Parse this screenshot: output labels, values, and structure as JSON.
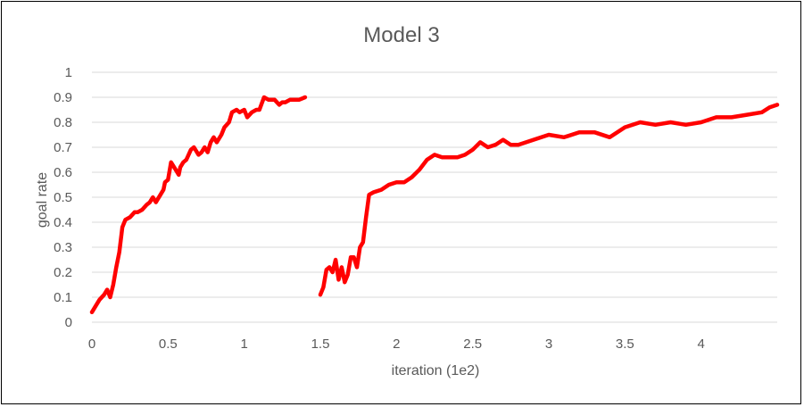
{
  "chart_data": {
    "type": "line",
    "title": "Model 3",
    "xlabel": "iteration (1e2)",
    "ylabel": "goal rate",
    "xlim": [
      0,
      4.5
    ],
    "ylim": [
      0,
      1
    ],
    "x_ticks": [
      "0",
      "0.5",
      "1",
      "1.5",
      "2",
      "2.5",
      "3",
      "3.5",
      "4"
    ],
    "x_tick_values": [
      0,
      0.5,
      1,
      1.5,
      2,
      2.5,
      3,
      3.5,
      4
    ],
    "y_ticks": [
      "0",
      "0.1",
      "0.2",
      "0.3",
      "0.4",
      "0.5",
      "0.6",
      "0.7",
      "0.8",
      "0.9",
      "1"
    ],
    "y_tick_values": [
      0,
      0.1,
      0.2,
      0.3,
      0.4,
      0.5,
      0.6,
      0.7,
      0.8,
      0.9,
      1
    ],
    "grid": true,
    "legend": "none",
    "series_color": "#ff0000",
    "series": [
      {
        "x": [
          0,
          0.02,
          0.05,
          0.08,
          0.1,
          0.12,
          0.14,
          0.16,
          0.18,
          0.2,
          0.22,
          0.25,
          0.28,
          0.3,
          0.33,
          0.36,
          0.38,
          0.4,
          0.42,
          0.45,
          0.47,
          0.48,
          0.5,
          0.52,
          0.55,
          0.57,
          0.58,
          0.6,
          0.62,
          0.65,
          0.67,
          0.7,
          0.72,
          0.74,
          0.76,
          0.78,
          0.8,
          0.82,
          0.85,
          0.87,
          0.9,
          0.92,
          0.95,
          0.97,
          1.0,
          1.02,
          1.05,
          1.08,
          1.1,
          1.13,
          1.16,
          1.2,
          1.23,
          1.25,
          1.27,
          1.3,
          1.33,
          1.36,
          1.4
        ],
        "y": [
          0.04,
          0.06,
          0.09,
          0.11,
          0.13,
          0.1,
          0.15,
          0.22,
          0.28,
          0.38,
          0.41,
          0.42,
          0.44,
          0.44,
          0.45,
          0.47,
          0.48,
          0.5,
          0.48,
          0.51,
          0.53,
          0.56,
          0.57,
          0.64,
          0.61,
          0.59,
          0.62,
          0.64,
          0.65,
          0.69,
          0.7,
          0.67,
          0.68,
          0.7,
          0.68,
          0.72,
          0.74,
          0.72,
          0.75,
          0.78,
          0.8,
          0.84,
          0.85,
          0.84,
          0.85,
          0.82,
          0.84,
          0.85,
          0.85,
          0.9,
          0.89,
          0.89,
          0.87,
          0.88,
          0.88,
          0.89,
          0.89,
          0.89,
          0.9
        ]
      },
      {
        "x": [
          1.5,
          1.52,
          1.54,
          1.56,
          1.58,
          1.6,
          1.62,
          1.64,
          1.66,
          1.68,
          1.7,
          1.72,
          1.74,
          1.76,
          1.78,
          1.8,
          1.82,
          1.85,
          1.9,
          1.95,
          2.0,
          2.05,
          2.1,
          2.15,
          2.2,
          2.25,
          2.3,
          2.35,
          2.4,
          2.45,
          2.5,
          2.55,
          2.6,
          2.65,
          2.7,
          2.75,
          2.8,
          2.9,
          3.0,
          3.1,
          3.2,
          3.3,
          3.4,
          3.5,
          3.6,
          3.7,
          3.8,
          3.9,
          4.0,
          4.1,
          4.2,
          4.3,
          4.4,
          4.45,
          4.5
        ],
        "y": [
          0.11,
          0.14,
          0.21,
          0.22,
          0.2,
          0.25,
          0.17,
          0.22,
          0.16,
          0.19,
          0.26,
          0.26,
          0.22,
          0.3,
          0.32,
          0.42,
          0.51,
          0.52,
          0.53,
          0.55,
          0.56,
          0.56,
          0.58,
          0.61,
          0.65,
          0.67,
          0.66,
          0.66,
          0.66,
          0.67,
          0.69,
          0.72,
          0.7,
          0.71,
          0.73,
          0.71,
          0.71,
          0.73,
          0.75,
          0.74,
          0.76,
          0.76,
          0.74,
          0.78,
          0.8,
          0.79,
          0.8,
          0.79,
          0.8,
          0.82,
          0.82,
          0.83,
          0.84,
          0.86,
          0.87
        ]
      }
    ]
  }
}
